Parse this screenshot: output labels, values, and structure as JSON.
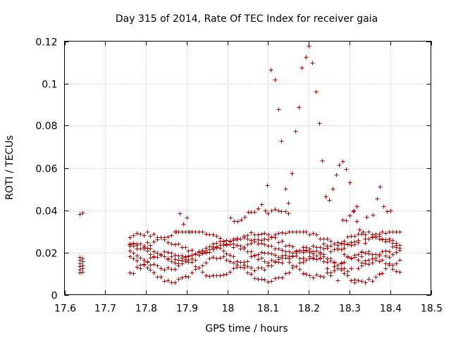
{
  "chart_data": {
    "type": "scatter",
    "title": "Day 315 of 2014, Rate Of TEC Index for receiver gaia",
    "xlabel": "GPS time / hours",
    "ylabel": "ROTI / TECUs",
    "xlim": [
      17.6,
      18.5
    ],
    "ylim": [
      0,
      0.12
    ],
    "xticks": [
      17.6,
      17.7,
      17.8,
      17.9,
      18.0,
      18.1,
      18.2,
      18.3,
      18.4,
      18.5
    ],
    "xtick_labels": [
      "17.6",
      "17.7",
      "17.8",
      "17.9",
      "18",
      "18.1",
      "18.2",
      "18.3",
      "18.4",
      "18.5"
    ],
    "yticks": [
      0,
      0.02,
      0.04,
      0.06,
      0.08,
      0.1,
      0.12
    ],
    "ytick_labels": [
      "0",
      "0.02",
      "0.04",
      "0.06",
      "0.08",
      "0.1",
      "0.12"
    ],
    "grid": true,
    "marker": "+",
    "color": "#cc0000",
    "series": [
      {
        "points": [
          [
            17.637,
            0.0383
          ],
          [
            17.645,
            0.0387
          ],
          [
            17.637,
            0.0105
          ],
          [
            17.637,
            0.012
          ],
          [
            17.637,
            0.0135
          ],
          [
            17.637,
            0.015
          ],
          [
            17.637,
            0.0165
          ],
          [
            17.637,
            0.0178
          ],
          [
            17.645,
            0.0108
          ],
          [
            17.645,
            0.0125
          ],
          [
            17.645,
            0.014
          ],
          [
            17.645,
            0.0157
          ],
          [
            17.645,
            0.0172
          ],
          [
            18.098,
            0.052
          ],
          [
            18.107,
            0.1065
          ],
          [
            18.117,
            0.102
          ],
          [
            18.125,
            0.088
          ],
          [
            18.133,
            0.073
          ],
          [
            18.142,
            0.0503
          ],
          [
            18.15,
            0.0435
          ],
          [
            18.158,
            0.0575
          ],
          [
            18.167,
            0.0775
          ],
          [
            18.175,
            0.089
          ],
          [
            18.183,
            0.1075
          ],
          [
            18.192,
            0.1125
          ],
          [
            18.2,
            0.1177
          ],
          [
            18.208,
            0.1098
          ],
          [
            18.217,
            0.0963
          ],
          [
            18.225,
            0.0812
          ],
          [
            18.233,
            0.0636
          ],
          [
            18.242,
            0.0465
          ],
          [
            18.25,
            0.045
          ],
          [
            18.258,
            0.0503
          ],
          [
            18.267,
            0.057
          ],
          [
            18.275,
            0.0615
          ],
          [
            18.283,
            0.0632
          ],
          [
            18.292,
            0.0595
          ],
          [
            18.3,
            0.0533
          ],
          [
            18.31,
            0.04
          ],
          [
            18.318,
            0.042
          ],
          [
            18.358,
            0.038
          ],
          [
            18.367,
            0.0455
          ],
          [
            18.375,
            0.0512
          ],
          [
            18.383,
            0.042
          ],
          [
            18.392,
            0.0395
          ],
          [
            18.4,
            0.04
          ],
          [
            18.008,
            0.0365
          ],
          [
            18.017,
            0.035
          ],
          [
            18.025,
            0.0348
          ],
          [
            18.033,
            0.0355
          ],
          [
            18.042,
            0.037
          ],
          [
            18.05,
            0.0392
          ],
          [
            18.058,
            0.0393
          ],
          [
            18.067,
            0.0393
          ],
          [
            18.075,
            0.041
          ],
          [
            18.083,
            0.043
          ],
          [
            18.092,
            0.04
          ],
          [
            18.1,
            0.0385
          ],
          [
            18.108,
            0.04
          ],
          [
            18.117,
            0.0405
          ],
          [
            18.125,
            0.04
          ],
          [
            18.133,
            0.0395
          ],
          [
            18.142,
            0.0395
          ],
          [
            18.15,
            0.0385
          ],
          [
            17.875,
            0.03
          ],
          [
            17.883,
            0.0385
          ],
          [
            17.892,
            0.0335
          ],
          [
            17.9,
            0.0365
          ],
          [
            17.908,
            0.03
          ],
          [
            18.283,
            0.0355
          ],
          [
            18.292,
            0.0352
          ],
          [
            18.3,
            0.0375
          ],
          [
            18.308,
            0.0395
          ],
          [
            18.317,
            0.035
          ],
          [
            18.325,
            0.031
          ],
          [
            18.333,
            0.03
          ],
          [
            18.342,
            0.037
          ]
        ]
      }
    ]
  }
}
